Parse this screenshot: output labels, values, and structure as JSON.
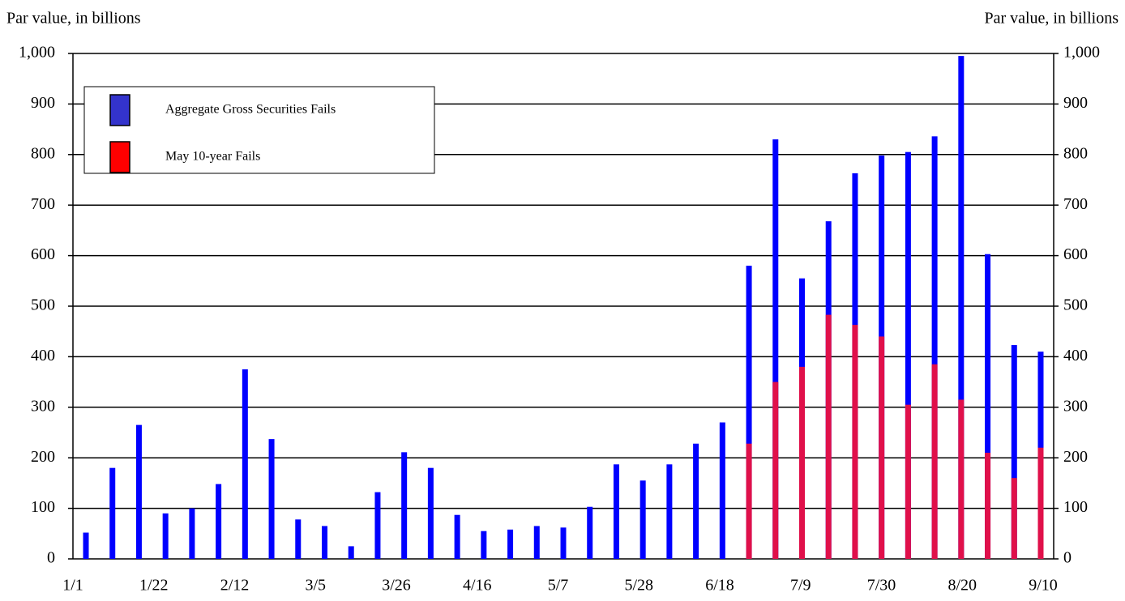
{
  "chart_data": {
    "type": "bar",
    "y_label": "Par value, in billions",
    "y2_label": "Par value, in billions",
    "categories": [
      "1/1",
      null,
      null,
      "1/22",
      null,
      null,
      "2/12",
      null,
      null,
      "3/5",
      null,
      null,
      "3/26",
      null,
      null,
      "4/16",
      null,
      null,
      "5/7",
      null,
      null,
      "5/28",
      null,
      null,
      "6/18",
      null,
      null,
      "7/9",
      null,
      null,
      "7/30",
      null,
      null,
      "8/20",
      null,
      null,
      "9/10"
    ],
    "series": [
      {
        "name": "Aggregate Gross Securities Fails",
        "color": "#0000ff",
        "values": [
          52,
          180,
          265,
          90,
          100,
          148,
          375,
          237,
          78,
          65,
          25,
          132,
          211,
          180,
          87,
          55,
          58,
          65,
          62,
          103,
          187,
          155,
          187,
          228,
          270,
          580,
          830,
          555,
          668,
          763,
          798,
          805,
          836,
          995,
          603,
          423,
          410
        ]
      },
      {
        "name": "May 10-year Fails",
        "color": "#e0104a",
        "values": [
          null,
          null,
          null,
          null,
          null,
          null,
          null,
          null,
          null,
          null,
          null,
          null,
          null,
          null,
          null,
          null,
          null,
          null,
          null,
          null,
          null,
          null,
          null,
          null,
          null,
          228,
          350,
          380,
          483,
          463,
          440,
          305,
          385,
          315,
          210,
          160,
          220
        ]
      }
    ],
    "ylim": [
      0,
      1000
    ],
    "yticks": [
      0,
      100,
      200,
      300,
      400,
      500,
      600,
      700,
      800,
      900,
      {
        "value": 1000,
        "label": "1,000"
      }
    ],
    "y2lim": [
      0,
      1000
    ],
    "y2ticks": [
      0,
      100,
      200,
      300,
      400,
      500,
      600,
      700,
      800,
      900,
      {
        "value": 1000,
        "label": "1,000"
      }
    ],
    "grid": true,
    "legend": "upper left"
  }
}
